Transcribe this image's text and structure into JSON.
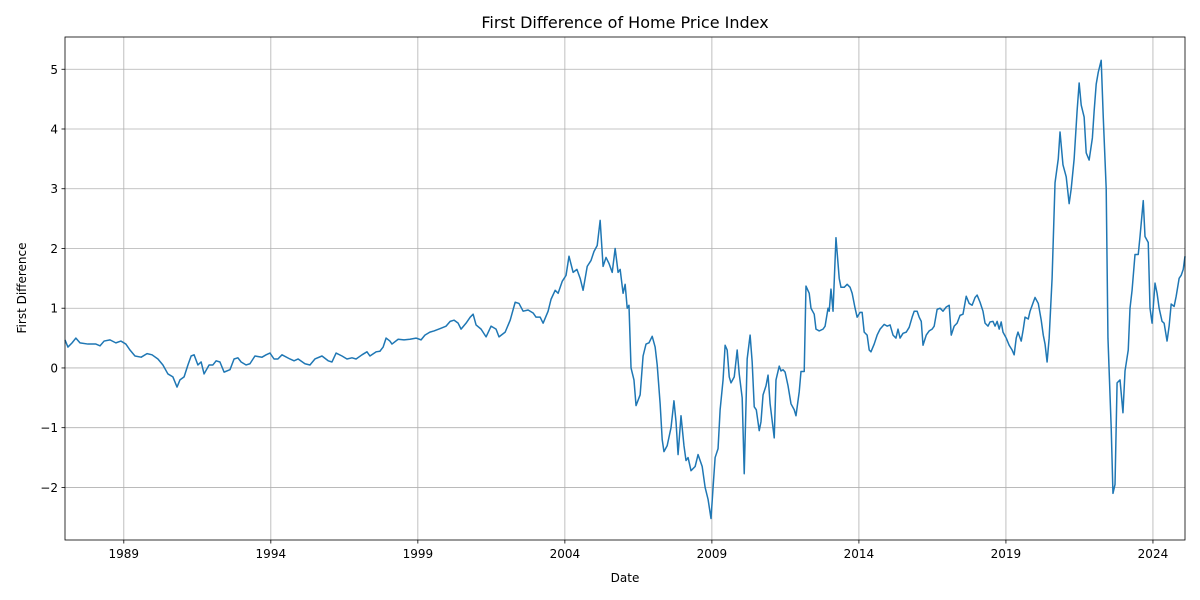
{
  "chart_data": {
    "type": "line",
    "title": "First Difference of Home Price Index",
    "xlabel": "Date",
    "ylabel": "First Difference",
    "x": [
      1987.0,
      1987.1,
      1987.24,
      1987.37,
      1987.51,
      1987.78,
      1988.05,
      1988.19,
      1988.33,
      1988.53,
      1988.73,
      1988.9,
      1989.07,
      1989.21,
      1989.38,
      1989.59,
      1989.79,
      1989.96,
      1990.16,
      1990.33,
      1990.5,
      1990.67,
      1990.81,
      1990.91,
      1991.05,
      1991.18,
      1991.29,
      1991.39,
      1991.52,
      1991.63,
      1991.73,
      1991.9,
      1992.03,
      1992.14,
      1992.27,
      1992.41,
      1992.61,
      1992.75,
      1992.88,
      1992.99,
      1993.16,
      1993.29,
      1993.46,
      1993.7,
      1993.84,
      1993.97,
      1994.11,
      1994.24,
      1994.38,
      1994.65,
      1994.79,
      1994.93,
      1995.16,
      1995.33,
      1995.5,
      1995.74,
      1995.95,
      1996.08,
      1996.22,
      1996.42,
      1996.59,
      1996.76,
      1996.9,
      1997.1,
      1997.27,
      1997.37,
      1997.58,
      1997.71,
      1997.82,
      1997.92,
      1998.05,
      1998.12,
      1998.33,
      1998.53,
      1998.73,
      1998.94,
      1999.11,
      1999.24,
      1999.41,
      1999.55,
      1999.76,
      1999.96,
      2000.1,
      2000.23,
      2000.37,
      2000.47,
      2000.64,
      2000.78,
      2000.88,
      2000.98,
      2001.15,
      2001.32,
      2001.49,
      2001.66,
      2001.76,
      2001.97,
      2002.14,
      2002.31,
      2002.44,
      2002.58,
      2002.75,
      2002.92,
      2003.02,
      2003.16,
      2003.26,
      2003.43,
      2003.53,
      2003.67,
      2003.77,
      2003.91,
      2004.04,
      2004.14,
      2004.28,
      2004.41,
      2004.52,
      2004.62,
      2004.76,
      2004.89,
      2004.99,
      2005.1,
      2005.2,
      2005.3,
      2005.4,
      2005.5,
      2005.61,
      2005.71,
      2005.81,
      2005.88,
      2005.98,
      2006.05,
      2006.12,
      2006.18,
      2006.25,
      2006.35,
      2006.42,
      2006.56,
      2006.66,
      2006.76,
      2006.86,
      2006.97,
      2007.07,
      2007.14,
      2007.24,
      2007.31,
      2007.37,
      2007.48,
      2007.61,
      2007.71,
      2007.78,
      2007.85,
      2007.95,
      2008.05,
      2008.12,
      2008.19,
      2008.29,
      2008.43,
      2008.53,
      2008.67,
      2008.77,
      2008.87,
      2008.97,
      2009.04,
      2009.11,
      2009.21,
      2009.28,
      2009.38,
      2009.45,
      2009.52,
      2009.59,
      2009.65,
      2009.76,
      2009.86,
      2009.93,
      2010.03,
      2010.1,
      2010.2,
      2010.3,
      2010.37,
      2010.44,
      2010.51,
      2010.61,
      2010.67,
      2010.74,
      2010.84,
      2010.91,
      2010.98,
      2011.12,
      2011.18,
      2011.29,
      2011.35,
      2011.42,
      2011.49,
      2011.59,
      2011.69,
      2011.8,
      2011.86,
      2011.97,
      2012.03,
      2012.14,
      2012.2,
      2012.31,
      2012.37,
      2012.48,
      2012.54,
      2012.65,
      2012.78,
      2012.85,
      2012.95,
      2012.99,
      2013.05,
      2013.12,
      2013.22,
      2013.33,
      2013.39,
      2013.5,
      2013.6,
      2013.7,
      2013.77,
      2013.87,
      2013.94,
      2014.04,
      2014.11,
      2014.18,
      2014.28,
      2014.35,
      2014.41,
      2014.52,
      2014.62,
      2014.72,
      2014.86,
      2014.96,
      2015.06,
      2015.16,
      2015.26,
      2015.33,
      2015.4,
      2015.5,
      2015.61,
      2015.71,
      2015.81,
      2015.88,
      2015.98,
      2016.05,
      2016.12,
      2016.18,
      2016.29,
      2016.39,
      2016.49,
      2016.56,
      2016.66,
      2016.76,
      2016.86,
      2016.97,
      2017.07,
      2017.14,
      2017.24,
      2017.34,
      2017.44,
      2017.54,
      2017.65,
      2017.75,
      2017.85,
      2017.95,
      2018.02,
      2018.12,
      2018.22,
      2018.29,
      2018.39,
      2018.46,
      2018.56,
      2018.63,
      2018.7,
      2018.77,
      2018.84,
      2018.9,
      2019.01,
      2019.11,
      2019.21,
      2019.28,
      2019.35,
      2019.41,
      2019.52,
      2019.59,
      2019.65,
      2019.76,
      2019.82,
      2019.93,
      2019.99,
      2020.1,
      2020.2,
      2020.27,
      2020.33,
      2020.4,
      2020.47,
      2020.57,
      2020.67,
      2020.78,
      2020.84,
      2020.94,
      2021.05,
      2021.15,
      2021.22,
      2021.32,
      2021.42,
      2021.49,
      2021.56,
      2021.66,
      2021.73,
      2021.83,
      2021.94,
      2022.0,
      2022.07,
      2022.14,
      2022.24,
      2022.31,
      2022.41,
      2022.47,
      2022.58,
      2022.64,
      2022.71,
      2022.78,
      2022.88,
      2022.98,
      2023.05,
      2023.16,
      2023.22,
      2023.29,
      2023.39,
      2023.5,
      2023.56,
      2023.67,
      2023.73,
      2023.84,
      2023.9,
      2023.97,
      2024.07,
      2024.14,
      2024.21,
      2024.31,
      2024.38,
      2024.48,
      2024.55,
      2024.62,
      2024.72,
      2024.79,
      2024.89,
      2024.96,
      2025.03,
      2025.09
    ],
    "values": [
      0.47,
      0.35,
      0.42,
      0.5,
      0.42,
      0.4,
      0.4,
      0.37,
      0.45,
      0.47,
      0.42,
      0.45,
      0.4,
      0.3,
      0.2,
      0.18,
      0.24,
      0.22,
      0.15,
      0.05,
      -0.1,
      -0.15,
      -0.32,
      -0.2,
      -0.15,
      0.05,
      0.2,
      0.22,
      0.05,
      0.1,
      -0.1,
      0.05,
      0.05,
      0.12,
      0.1,
      -0.07,
      -0.03,
      0.15,
      0.17,
      0.1,
      0.05,
      0.07,
      0.2,
      0.18,
      0.22,
      0.25,
      0.15,
      0.15,
      0.22,
      0.15,
      0.12,
      0.15,
      0.07,
      0.05,
      0.15,
      0.2,
      0.12,
      0.1,
      0.25,
      0.2,
      0.15,
      0.17,
      0.15,
      0.22,
      0.27,
      0.2,
      0.27,
      0.28,
      0.35,
      0.5,
      0.45,
      0.4,
      0.48,
      0.47,
      0.48,
      0.5,
      0.47,
      0.55,
      0.6,
      0.62,
      0.66,
      0.7,
      0.78,
      0.8,
      0.75,
      0.65,
      0.75,
      0.85,
      0.9,
      0.72,
      0.65,
      0.52,
      0.7,
      0.65,
      0.52,
      0.6,
      0.8,
      1.1,
      1.08,
      0.95,
      0.97,
      0.92,
      0.85,
      0.85,
      0.75,
      0.95,
      1.15,
      1.3,
      1.25,
      1.45,
      1.55,
      1.87,
      1.6,
      1.65,
      1.5,
      1.3,
      1.7,
      1.8,
      1.95,
      2.05,
      2.47,
      1.7,
      1.85,
      1.75,
      1.6,
      2.0,
      1.6,
      1.65,
      1.25,
      1.4,
      1.0,
      1.05,
      0.0,
      -0.2,
      -0.63,
      -0.45,
      0.2,
      0.4,
      0.42,
      0.53,
      0.35,
      0.05,
      -0.6,
      -1.2,
      -1.4,
      -1.3,
      -1.0,
      -0.55,
      -0.9,
      -1.45,
      -0.8,
      -1.3,
      -1.55,
      -1.5,
      -1.72,
      -1.65,
      -1.45,
      -1.65,
      -2.0,
      -2.2,
      -2.52,
      -2.0,
      -1.5,
      -1.35,
      -0.7,
      -0.2,
      0.38,
      0.3,
      -0.15,
      -0.25,
      -0.15,
      0.3,
      -0.1,
      -0.5,
      -1.77,
      0.15,
      0.55,
      0.1,
      -0.65,
      -0.7,
      -1.05,
      -0.9,
      -0.45,
      -0.3,
      -0.12,
      -0.6,
      -1.17,
      -0.2,
      0.03,
      -0.05,
      -0.03,
      -0.07,
      -0.3,
      -0.6,
      -0.7,
      -0.8,
      -0.4,
      -0.06,
      -0.06,
      1.37,
      1.25,
      1.0,
      0.9,
      0.65,
      0.62,
      0.65,
      0.7,
      1.0,
      0.95,
      1.32,
      0.95,
      2.18,
      1.5,
      1.35,
      1.35,
      1.4,
      1.35,
      1.25,
      1.0,
      0.85,
      0.93,
      0.93,
      0.6,
      0.55,
      0.3,
      0.27,
      0.4,
      0.55,
      0.65,
      0.73,
      0.7,
      0.72,
      0.55,
      0.5,
      0.65,
      0.5,
      0.58,
      0.6,
      0.68,
      0.85,
      0.95,
      0.95,
      0.85,
      0.78,
      0.38,
      0.55,
      0.62,
      0.65,
      0.7,
      0.98,
      1.0,
      0.95,
      1.02,
      1.05,
      0.55,
      0.7,
      0.75,
      0.88,
      0.9,
      1.2,
      1.08,
      1.05,
      1.18,
      1.22,
      1.1,
      0.95,
      0.75,
      0.7,
      0.77,
      0.78,
      0.7,
      0.78,
      0.65,
      0.77,
      0.6,
      0.5,
      0.38,
      0.3,
      0.22,
      0.5,
      0.6,
      0.45,
      0.65,
      0.85,
      0.82,
      0.95,
      1.1,
      1.18,
      1.08,
      0.8,
      0.55,
      0.4,
      0.1,
      0.5,
      1.5,
      3.1,
      3.5,
      3.95,
      3.4,
      3.2,
      2.75,
      3.0,
      3.5,
      4.3,
      4.77,
      4.4,
      4.2,
      3.6,
      3.48,
      3.85,
      4.3,
      4.75,
      4.95,
      5.15,
      4.2,
      3.0,
      0.5,
      -1.0,
      -2.1,
      -1.95,
      -0.25,
      -0.2,
      -0.75,
      -0.05,
      0.3,
      1.0,
      1.3,
      1.9,
      1.9,
      2.2,
      2.8,
      2.2,
      2.1,
      1.0,
      0.75,
      1.42,
      1.25,
      1.0,
      0.78,
      0.75,
      0.45,
      0.7,
      1.07,
      1.03,
      1.2,
      1.5,
      1.55,
      1.65,
      1.87
    ],
    "color": "#1f77b4",
    "xlim": [
      1987,
      2025.09
    ],
    "ylim": [
      -2.88,
      5.54
    ],
    "xticks": [
      1989,
      1994,
      1999,
      2004,
      2009,
      2014,
      2019,
      2024
    ],
    "yticks": [
      {
        "value": -2,
        "label": "−2"
      },
      {
        "value": -1,
        "label": "−1"
      },
      0,
      1,
      2,
      3,
      4,
      5
    ],
    "grid": true
  }
}
